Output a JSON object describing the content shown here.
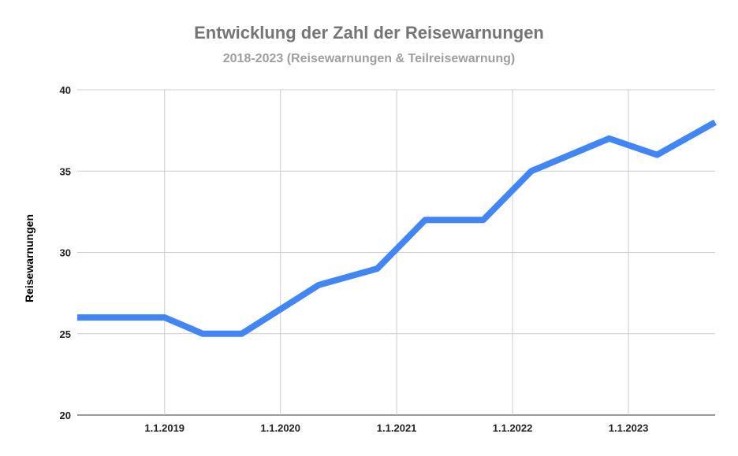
{
  "chart_data": {
    "type": "line",
    "title": "Entwicklung der Zahl der Reisewarnungen",
    "subtitle": "2018-2023 (Reisewarnungen & Teilreisewarnung)",
    "xlabel": "",
    "ylabel": "Reisewarnungen",
    "ylim": [
      20,
      40
    ],
    "yticks": [
      20,
      25,
      30,
      35,
      40
    ],
    "xlim": [
      "2018-04-01",
      "2023-10-01"
    ],
    "xticks": [
      {
        "date": "2019-01-01",
        "label": "1.1.2019"
      },
      {
        "date": "2020-01-01",
        "label": "1.1.2020"
      },
      {
        "date": "2021-01-01",
        "label": "1.1.2021"
      },
      {
        "date": "2022-01-01",
        "label": "1.1.2022"
      },
      {
        "date": "2023-01-01",
        "label": "1.1.2023"
      }
    ],
    "grid": true,
    "color": "#4285f4",
    "series": [
      {
        "x": [
          "2018-04-01",
          "2019-01-01",
          "2019-05-01",
          "2019-09-01",
          "2020-05-01",
          "2020-11-01",
          "2021-04-01",
          "2021-10-01",
          "2022-03-01",
          "2022-11-01",
          "2023-04-01",
          "2023-10-01"
        ],
        "values": [
          26,
          26,
          25,
          25,
          28,
          29,
          32,
          32,
          35,
          37,
          36,
          38
        ]
      }
    ]
  }
}
